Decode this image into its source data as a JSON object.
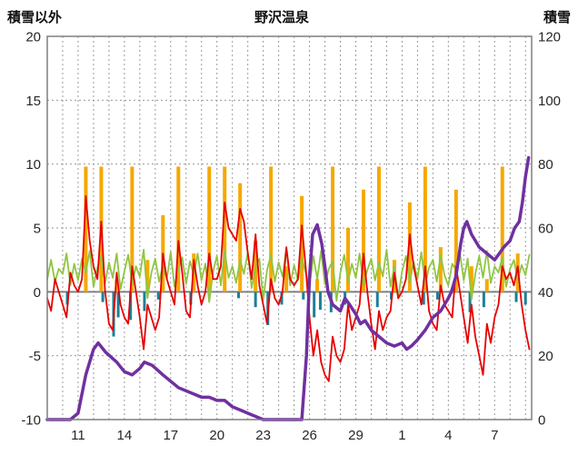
{
  "chart_data": {
    "type": "line",
    "title": "野沢温泉",
    "x_domain": [
      9,
      40.4
    ],
    "x_ticks": [
      {
        "day": 11,
        "label": "11"
      },
      {
        "day": 14,
        "label": "14"
      },
      {
        "day": 17,
        "label": "17"
      },
      {
        "day": 20,
        "label": "20"
      },
      {
        "day": 23,
        "label": "23"
      },
      {
        "day": 26,
        "label": "26"
      },
      {
        "day": 29,
        "label": "29"
      },
      {
        "day": 32,
        "label": "1"
      },
      {
        "day": 35,
        "label": "4"
      },
      {
        "day": 38,
        "label": "7"
      }
    ],
    "left_axis": {
      "label": "積雪以外",
      "min": -10,
      "max": 20,
      "ticks": [
        20,
        15,
        10,
        5,
        0,
        -5,
        -10
      ]
    },
    "right_axis": {
      "label": "積雪",
      "min": 0,
      "max": 120,
      "ticks": [
        120,
        100,
        80,
        60,
        40,
        20,
        0
      ]
    },
    "style": {
      "grid_color": "#9a9a9a",
      "border_color": "#7f7f7f",
      "zero_line_color": "#808080"
    },
    "series": [
      {
        "name": "orange-bars",
        "type": "bar",
        "axis": "left",
        "color": "#f5a800",
        "barwidth": 4,
        "x": [
          11.5,
          12.5,
          13.5,
          14.5,
          15.5,
          16.5,
          17.5,
          18.5,
          19.5,
          20.5,
          21.5,
          22.5,
          23.5,
          24.5,
          25.5,
          26.5,
          27.5,
          28.5,
          29.5,
          30.5,
          31.5,
          32.5,
          33.5,
          34.5,
          35.5,
          36.5,
          37.5,
          38.5,
          39.5
        ],
        "values": [
          9.8,
          9.8,
          1.0,
          9.8,
          2.5,
          6.0,
          9.8,
          3.0,
          9.8,
          9.8,
          8.5,
          4.0,
          9.8,
          2.0,
          7.5,
          1.0,
          9.8,
          5.0,
          8.0,
          9.8,
          2.5,
          7.0,
          9.8,
          3.5,
          8.0,
          2.0,
          1.0,
          9.8,
          3.0
        ]
      },
      {
        "name": "teal-bars",
        "type": "bar",
        "axis": "left",
        "color": "#1e7f96",
        "barwidth": 3,
        "x": [
          10.3,
          12.6,
          13.3,
          13.6,
          14.4,
          15.3,
          16.2,
          18.3,
          21.4,
          22.5,
          23.3,
          24.2,
          25.6,
          26.3,
          26.7,
          27.4,
          28.3,
          30.4,
          31.3,
          33.4,
          34.3,
          36.4,
          37.3,
          39.4,
          40.0
        ],
        "values": [
          -1.0,
          -0.8,
          -3.5,
          -2.0,
          -2.2,
          -1.5,
          -0.6,
          -1.0,
          -0.5,
          -1.2,
          -2.6,
          -1.0,
          -0.6,
          -2.0,
          -1.4,
          -1.6,
          -1.0,
          -1.2,
          -0.6,
          -1.0,
          -0.6,
          -1.6,
          -1.2,
          -0.8,
          -1.0
        ]
      },
      {
        "name": "green-line",
        "type": "line",
        "axis": "left",
        "color": "#8ec641",
        "width": 1.8,
        "start": 9,
        "step": 0.25,
        "values": [
          1.0,
          2.5,
          0.8,
          1.8,
          1.4,
          3.0,
          0.5,
          2.2,
          0.9,
          2.6,
          1.5,
          3.2,
          0.4,
          1.9,
          2.8,
          0.7,
          2.3,
          1.1,
          3.0,
          0.2,
          1.6,
          2.9,
          0.6,
          2.0,
          1.2,
          3.3,
          -0.5,
          1.5,
          2.6,
          0.8,
          2.1,
          1.0,
          3.1,
          0.4,
          1.8,
          2.7,
          0.6,
          2.4,
          1.3,
          3.0,
          0.9,
          2.2,
          -0.8,
          1.6,
          2.8,
          0.5,
          3.2,
          1.1,
          2.0,
          0.7,
          2.5,
          1.4,
          3.1,
          0.3,
          1.9,
          2.6,
          -0.6,
          1.7,
          2.9,
          0.8,
          2.3,
          1.2,
          3.4,
          0.5,
          2.1,
          0.9,
          2.7,
          1.5,
          0.4,
          2.8,
          1.0,
          3.2,
          0.6,
          1.8,
          2.4,
          -0.7,
          1.5,
          2.9,
          0.8,
          2.2,
          1.1,
          3.0,
          0.5,
          1.7,
          2.6,
          0.9,
          2.3,
          1.2,
          3.3,
          0.4,
          2.0,
          -0.5,
          1.6,
          2.8,
          0.7,
          2.4,
          1.0,
          3.1,
          0.6,
          1.9,
          2.5,
          0.8,
          2.9,
          1.3,
          0.5,
          2.2,
          1.7,
          3.0,
          0.9,
          2.6,
          -0.6,
          1.4,
          2.8,
          1.1,
          3.2,
          0.7,
          2.0,
          1.5,
          2.7,
          0.4,
          1.8,
          2.5,
          0.9,
          2.1,
          1.3,
          2.9
        ]
      },
      {
        "name": "red-line",
        "type": "line",
        "axis": "left",
        "color": "#e60000",
        "width": 1.8,
        "start": 9,
        "step": 0.25,
        "values": [
          -0.5,
          -1.5,
          1.0,
          0.0,
          -1.0,
          -2.0,
          1.5,
          0.5,
          0.0,
          1.0,
          7.5,
          4.0,
          2.0,
          1.0,
          5.5,
          0.0,
          -2.5,
          -3.0,
          1.5,
          -1.0,
          -2.0,
          -2.5,
          2.0,
          0.0,
          -2.0,
          -4.5,
          -1.0,
          -2.0,
          -3.0,
          -2.0,
          3.0,
          1.0,
          0.0,
          -1.0,
          4.0,
          1.5,
          -1.5,
          -2.0,
          2.5,
          0.5,
          -1.0,
          0.0,
          3.0,
          1.0,
          1.0,
          2.0,
          7.0,
          5.0,
          4.5,
          4.0,
          6.5,
          5.5,
          3.0,
          1.0,
          4.5,
          0.5,
          -1.0,
          -2.5,
          1.0,
          -0.5,
          -1.0,
          0.0,
          3.5,
          1.0,
          0.5,
          1.0,
          5.2,
          2.0,
          -2.0,
          -5.0,
          -3.0,
          -5.5,
          -6.5,
          -7.0,
          -3.5,
          -5.0,
          -5.5,
          -4.5,
          -1.0,
          -3.0,
          -2.0,
          -1.0,
          3.0,
          0.0,
          -2.5,
          -4.5,
          -1.5,
          -3.0,
          -2.0,
          -1.5,
          1.5,
          -0.5,
          0.0,
          1.0,
          4.5,
          2.0,
          0.5,
          -1.0,
          2.0,
          -1.5,
          -2.5,
          -3.0,
          0.5,
          -1.0,
          -1.5,
          -2.0,
          2.0,
          0.0,
          -2.0,
          -4.0,
          -1.0,
          -3.5,
          -5.0,
          -6.5,
          -2.5,
          -4.0,
          -2.0,
          -1.0,
          2.0,
          1.0,
          1.5,
          0.5,
          2.0,
          -1.0,
          -3.0,
          -4.5
        ]
      },
      {
        "name": "purple-line",
        "type": "line",
        "axis": "right",
        "color": "#7030a0",
        "width": 3.5,
        "points": [
          [
            9,
            0
          ],
          [
            10.5,
            0
          ],
          [
            11,
            2
          ],
          [
            11.5,
            14
          ],
          [
            12,
            22
          ],
          [
            12.3,
            24
          ],
          [
            12.8,
            21
          ],
          [
            13.5,
            18
          ],
          [
            14,
            15
          ],
          [
            14.5,
            14
          ],
          [
            15,
            16
          ],
          [
            15.3,
            18
          ],
          [
            15.8,
            17
          ],
          [
            16.5,
            14
          ],
          [
            17,
            12
          ],
          [
            17.5,
            10
          ],
          [
            18,
            9
          ],
          [
            18.5,
            8
          ],
          [
            19,
            7
          ],
          [
            19.5,
            7
          ],
          [
            20,
            6
          ],
          [
            20.5,
            6
          ],
          [
            21,
            4
          ],
          [
            21.5,
            3
          ],
          [
            22,
            2
          ],
          [
            22.5,
            1
          ],
          [
            23,
            0
          ],
          [
            25.5,
            0
          ],
          [
            25.8,
            20
          ],
          [
            26,
            45
          ],
          [
            26.2,
            58
          ],
          [
            26.5,
            61
          ],
          [
            26.8,
            55
          ],
          [
            27,
            48
          ],
          [
            27.2,
            40
          ],
          [
            27.5,
            36
          ],
          [
            28,
            34
          ],
          [
            28.3,
            38
          ],
          [
            28.6,
            36
          ],
          [
            29,
            33
          ],
          [
            29.3,
            30
          ],
          [
            29.6,
            31
          ],
          [
            30,
            28
          ],
          [
            30.5,
            26
          ],
          [
            31,
            24
          ],
          [
            31.5,
            23
          ],
          [
            32,
            24
          ],
          [
            32.3,
            22
          ],
          [
            32.6,
            23
          ],
          [
            33,
            25
          ],
          [
            33.5,
            28
          ],
          [
            34,
            32
          ],
          [
            34.5,
            34
          ],
          [
            35,
            38
          ],
          [
            35.2,
            40
          ],
          [
            35.5,
            45
          ],
          [
            35.8,
            55
          ],
          [
            36,
            60
          ],
          [
            36.2,
            62
          ],
          [
            36.5,
            58
          ],
          [
            37,
            54
          ],
          [
            37.5,
            52
          ],
          [
            38,
            50
          ],
          [
            38.3,
            52
          ],
          [
            38.6,
            54
          ],
          [
            39,
            56
          ],
          [
            39.3,
            60
          ],
          [
            39.6,
            62
          ],
          [
            39.8,
            68
          ],
          [
            40,
            76
          ],
          [
            40.2,
            82
          ]
        ]
      }
    ]
  }
}
